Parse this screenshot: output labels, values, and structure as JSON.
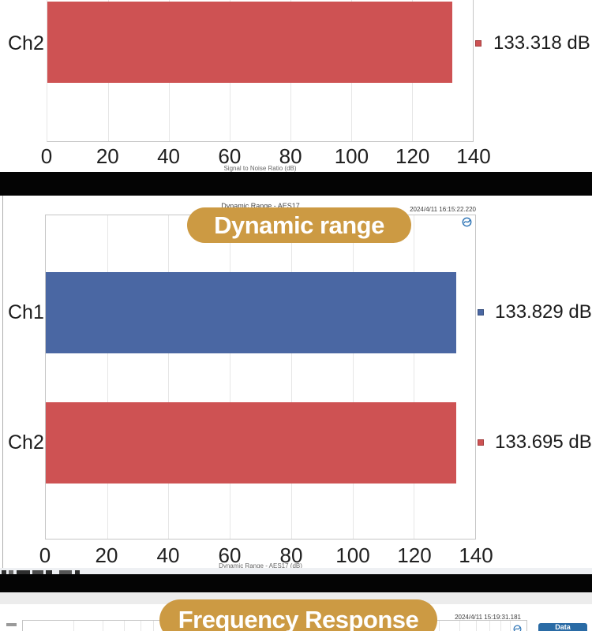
{
  "colors": {
    "bar_red": "#ce5253",
    "bar_blue": "#4a67a3",
    "badge_gold": "#cc9a43",
    "button_blue": "#2a6ba5",
    "ap_logo_blue": "#2e74b5"
  },
  "snr_chart": {
    "axis_label": "Signal to Noise Ratio (dB)",
    "ticks": [
      "0",
      "20",
      "40",
      "60",
      "80",
      "100",
      "120",
      "140"
    ],
    "rows": [
      {
        "label": "Ch2",
        "value_label": "133.318 dB"
      }
    ]
  },
  "dr_chart": {
    "overlay_badge": "Dynamic range",
    "hidden_title": "Dynamic Range - AES17",
    "timestamp": "2024/4/11 16:15:22.220",
    "axis_label": "Dynamic Range - AES17 (dB)",
    "ticks": [
      "0",
      "20",
      "40",
      "60",
      "80",
      "100",
      "120",
      "140"
    ],
    "rows": [
      {
        "label": "Ch1",
        "value_label": "133.829 dB"
      },
      {
        "label": "Ch2",
        "value_label": "133.695 dB"
      }
    ]
  },
  "fr_chart": {
    "overlay_badge": "Frequency Response",
    "timestamp": "2024/4/11 15:19:31.181",
    "data_button": "Data"
  },
  "chart_data": [
    {
      "type": "bar",
      "orientation": "horizontal",
      "title": "Signal to Noise Ratio",
      "categories": [
        "Ch2"
      ],
      "values": [
        133.318
      ],
      "data_labels": [
        "133.318 dB"
      ],
      "xlabel": "Signal to Noise Ratio (dB)",
      "xlim": [
        0,
        140
      ],
      "x_ticks": [
        0,
        20,
        40,
        60,
        80,
        100,
        120,
        140
      ],
      "unit": "dB",
      "bar_colors": [
        "#ce5253"
      ],
      "grid": true,
      "note": "chart cropped at top of screenshot; only Ch2 row visible"
    },
    {
      "type": "bar",
      "orientation": "horizontal",
      "title": "Dynamic range",
      "subtitle": "Dynamic Range - AES17",
      "timestamp": "2024/4/11 16:15:22.220",
      "categories": [
        "Ch1",
        "Ch2"
      ],
      "values": [
        133.829,
        133.695
      ],
      "data_labels": [
        "133.829 dB",
        "133.695 dB"
      ],
      "xlabel": "Dynamic Range - AES17 (dB)",
      "xlim": [
        0,
        140
      ],
      "x_ticks": [
        0,
        20,
        40,
        60,
        80,
        100,
        120,
        140
      ],
      "unit": "dB",
      "bar_colors": [
        "#4a67a3",
        "#ce5253"
      ],
      "grid": true
    },
    {
      "type": "line",
      "title": "Frequency Response",
      "timestamp": "2024/4/11 15:19:31.181",
      "x_scale": "log",
      "note": "only top sliver of chart grid visible at bottom crop"
    }
  ]
}
